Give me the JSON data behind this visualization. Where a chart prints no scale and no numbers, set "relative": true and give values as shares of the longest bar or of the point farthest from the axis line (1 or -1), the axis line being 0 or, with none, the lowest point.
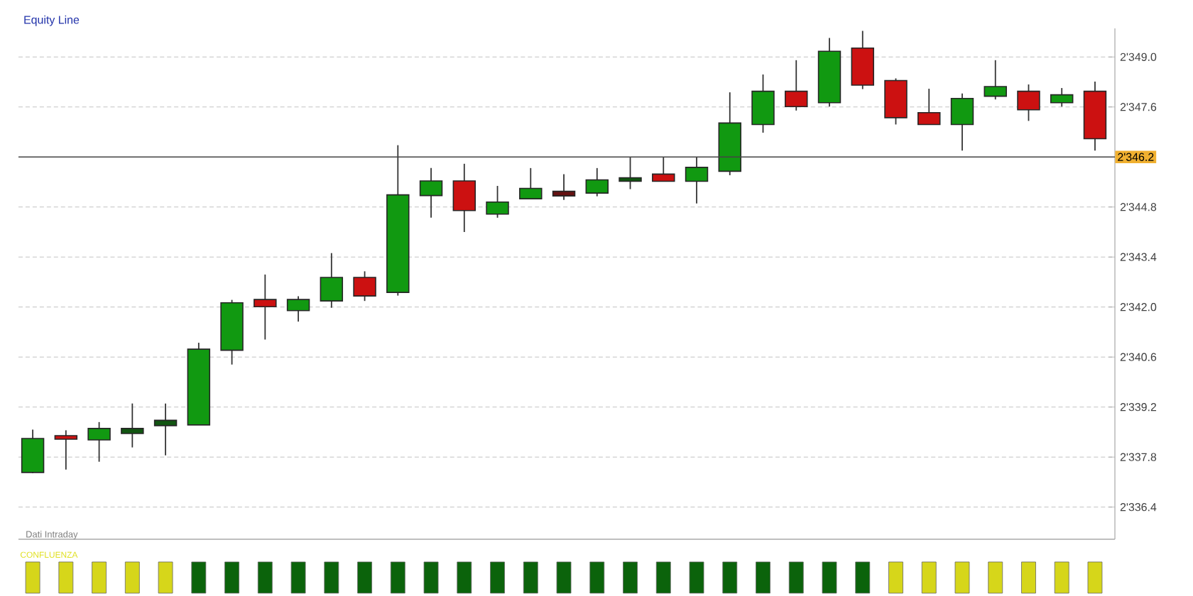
{
  "chart_data": [
    {
      "type": "candlestick",
      "title": "Equity Line",
      "categories": [
        null,
        null,
        null,
        null,
        null,
        null,
        null,
        null,
        null,
        null,
        null,
        null,
        null,
        null,
        null,
        null,
        null,
        null,
        null,
        null,
        null,
        null,
        null,
        null,
        null,
        null,
        null,
        null,
        null,
        null,
        null,
        null,
        null
      ],
      "ohlc": [
        [
          2337.37,
          2338.57,
          2337.35,
          2338.32
        ],
        [
          2338.4,
          2338.55,
          2337.45,
          2338.3
        ],
        [
          2338.28,
          2338.78,
          2337.67,
          2338.6
        ],
        [
          2338.46,
          2339.3,
          2338.07,
          2338.6
        ],
        [
          2338.68,
          2339.3,
          2337.85,
          2338.83
        ],
        [
          2338.7,
          2341.0,
          2338.7,
          2340.82
        ],
        [
          2340.79,
          2342.2,
          2340.39,
          2342.12
        ],
        [
          2342.21,
          2342.91,
          2341.09,
          2342.01
        ],
        [
          2341.9,
          2342.3,
          2341.59,
          2342.21
        ],
        [
          2342.17,
          2343.51,
          2341.98,
          2342.83
        ],
        [
          2342.83,
          2343.0,
          2342.17,
          2342.31
        ],
        [
          2342.41,
          2346.53,
          2342.32,
          2345.14
        ],
        [
          2345.12,
          2345.89,
          2344.5,
          2345.53
        ],
        [
          2345.53,
          2346.01,
          2344.1,
          2344.7
        ],
        [
          2344.6,
          2345.39,
          2344.5,
          2344.94
        ],
        [
          2345.03,
          2345.89,
          2345.03,
          2345.32
        ],
        [
          2345.24,
          2345.72,
          2345.0,
          2345.11
        ],
        [
          2345.19,
          2345.89,
          2345.1,
          2345.56
        ],
        [
          2345.52,
          2346.19,
          2345.3,
          2345.62
        ],
        [
          2345.72,
          2346.19,
          2345.52,
          2345.52
        ],
        [
          2345.52,
          2346.19,
          2344.9,
          2345.91
        ],
        [
          2345.8,
          2348.01,
          2345.69,
          2347.15
        ],
        [
          2347.11,
          2348.51,
          2346.88,
          2348.04
        ],
        [
          2348.04,
          2348.91,
          2347.5,
          2347.61
        ],
        [
          2347.72,
          2349.53,
          2347.61,
          2349.16
        ],
        [
          2349.25,
          2349.73,
          2348.1,
          2348.21
        ],
        [
          2348.34,
          2348.4,
          2347.11,
          2347.3
        ],
        [
          2347.44,
          2348.11,
          2347.11,
          2347.11
        ],
        [
          2347.11,
          2347.98,
          2346.38,
          2347.84
        ],
        [
          2347.9,
          2348.91,
          2347.81,
          2348.17
        ],
        [
          2348.04,
          2348.23,
          2347.21,
          2347.52
        ],
        [
          2347.72,
          2348.13,
          2347.61,
          2347.94
        ],
        [
          2348.04,
          2348.31,
          2346.38,
          2346.71
        ]
      ],
      "colors": [
        "#119911",
        "#cc1111",
        "#119911",
        "#115511",
        "#115511",
        "#119911",
        "#119911",
        "#cc1111",
        "#119911",
        "#119911",
        "#cc1111",
        "#119911",
        "#119911",
        "#cc1111",
        "#119911",
        "#119911",
        "#661111",
        "#119911",
        "#115511",
        "#cc1111",
        "#119911",
        "#119911",
        "#119911",
        "#cc1111",
        "#119911",
        "#cc1111",
        "#cc1111",
        "#cc1111",
        "#119911",
        "#119911",
        "#cc1111",
        "#119911",
        "#cc1111"
      ],
      "ylim": [
        2335.5,
        2349.8
      ],
      "yticks": [
        {
          "value": 2336.4,
          "label": "2'336.4"
        },
        {
          "value": 2337.8,
          "label": "2'337.8"
        },
        {
          "value": 2339.2,
          "label": "2'339.2"
        },
        {
          "value": 2340.6,
          "label": "2'340.6"
        },
        {
          "value": 2342.0,
          "label": "2'342.0"
        },
        {
          "value": 2343.4,
          "label": "2'343.4"
        },
        {
          "value": 2344.8,
          "label": "2'344.8"
        },
        {
          "value": 2347.6,
          "label": "2'347.6"
        },
        {
          "value": 2349.0,
          "label": "2'349.0"
        }
      ],
      "grid": "y",
      "ref_lines": [
        {
          "axis": "y",
          "value": 2346.2,
          "label": "2'346.2",
          "color": "#444444"
        }
      ],
      "annotations": [
        "Dati Intraday"
      ]
    },
    {
      "type": "bar",
      "title": "CONFLUENZA",
      "relative": true,
      "categories": [
        null,
        null,
        null,
        null,
        null,
        null,
        null,
        null,
        null,
        null,
        null,
        null,
        null,
        null,
        null,
        null,
        null,
        null,
        null,
        null,
        null,
        null,
        null,
        null,
        null,
        null,
        null,
        null,
        null,
        null,
        null,
        null,
        null
      ],
      "values": [
        1,
        1,
        1,
        1,
        1,
        1,
        1,
        1,
        1,
        1,
        1,
        1,
        1,
        1,
        1,
        1,
        1,
        1,
        1,
        1,
        1,
        1,
        1,
        1,
        1,
        1,
        1,
        1,
        1,
        1,
        1,
        1,
        1
      ],
      "colors": [
        "#d6d61a",
        "#d6d61a",
        "#d6d61a",
        "#d6d61a",
        "#d6d61a",
        "#0b630b",
        "#0b630b",
        "#0b630b",
        "#0b630b",
        "#0b630b",
        "#0b630b",
        "#0b630b",
        "#0b630b",
        "#0b630b",
        "#0b630b",
        "#0b630b",
        "#0b630b",
        "#0b630b",
        "#0b630b",
        "#0b630b",
        "#0b630b",
        "#0b630b",
        "#0b630b",
        "#0b630b",
        "#0b630b",
        "#0b630b",
        "#d6d61a",
        "#d6d61a",
        "#d6d61a",
        "#d6d61a",
        "#d6d61a",
        "#d6d61a",
        "#d6d61a"
      ]
    }
  ]
}
